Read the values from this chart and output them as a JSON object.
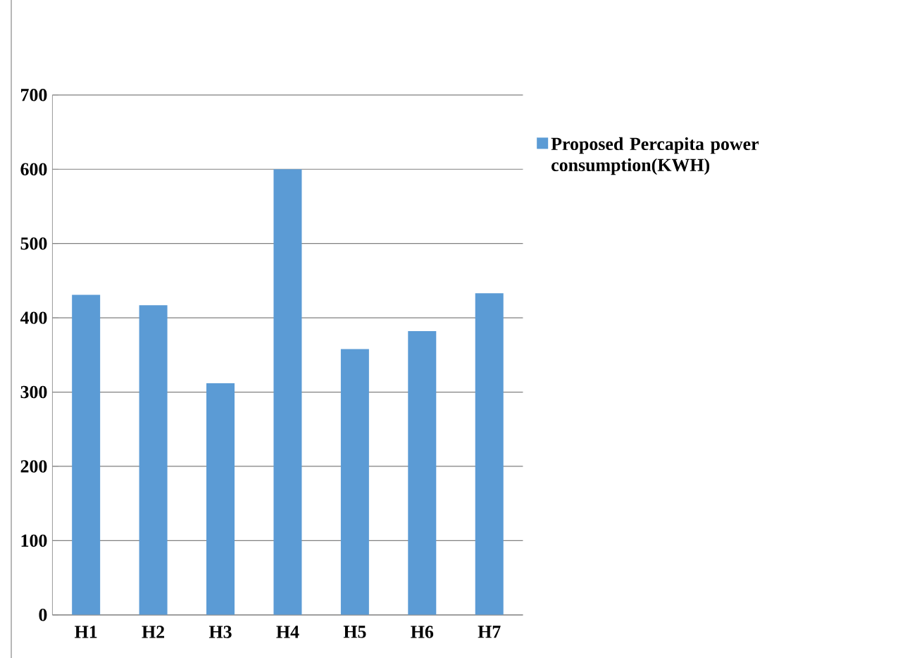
{
  "chart_data": {
    "type": "bar",
    "categories": [
      "H1",
      "H2",
      "H3",
      "H4",
      "H5",
      "H6",
      "H7"
    ],
    "series": [
      {
        "name": "Proposed Percapita power consumption(KWH)",
        "color": "#5b9bd5",
        "values": [
          431,
          417,
          312,
          600,
          358,
          382,
          433
        ]
      }
    ],
    "ylim": [
      0,
      700
    ],
    "yticks": [
      0,
      100,
      200,
      300,
      400,
      500,
      600,
      700
    ],
    "grid": "y",
    "legend": "right"
  }
}
